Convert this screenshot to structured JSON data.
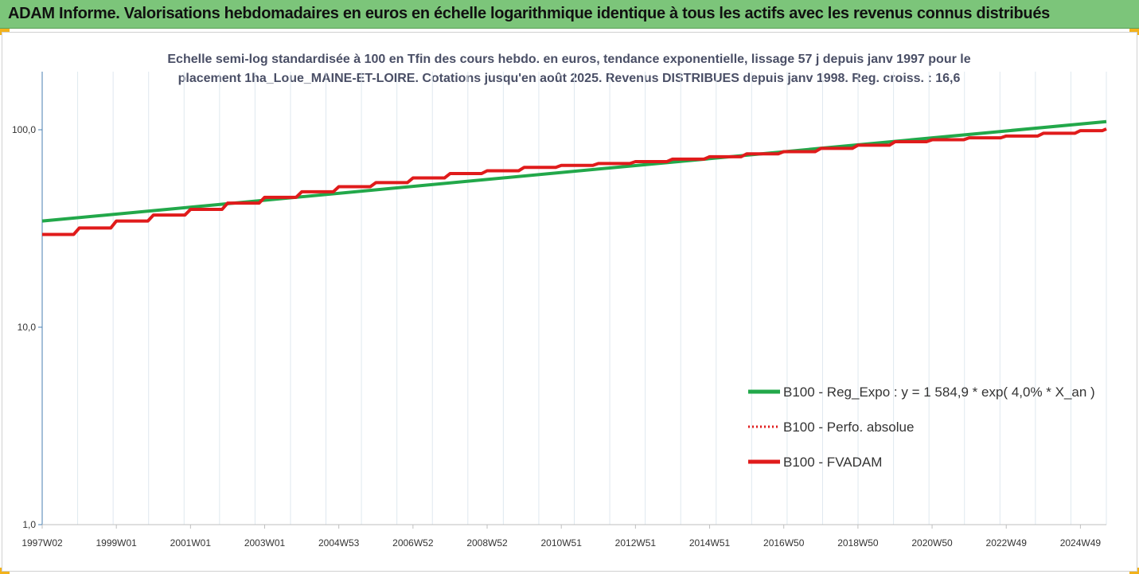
{
  "header": {
    "title": "ADAM Informe. Valorisations hebdomadaires en euros en échelle logarithmique identique à tous les actifs avec les revenus connus distribués",
    "background": "#7cc57a"
  },
  "chart_data": {
    "type": "line",
    "subtitle_line1": "Echelle semi-log standardisée à 100 en Tfin des cours hebdo. en euros, tendance exponentielle, lissage 57 j depuis janv 1997 pour le",
    "subtitle_line2": "placement 1ha_Loue_MAINE-ET-LOIRE. Cotations jusqu'en août 2025. Revenus DISTRIBUES depuis janv 1998. Reg. croiss. : 16,6",
    "y_scale": "log",
    "ylim": [
      1,
      200
    ],
    "y_ticks": [
      {
        "value": 1,
        "label": "1,0"
      },
      {
        "value": 10,
        "label": "10,0"
      },
      {
        "value": 100,
        "label": "100,0"
      }
    ],
    "x_range": [
      1997.0,
      2025.7
    ],
    "x_ticks": [
      {
        "year": 1997.0,
        "label": "1997W02"
      },
      {
        "year": 1999.0,
        "label": "1999W01"
      },
      {
        "year": 2001.0,
        "label": "2001W01"
      },
      {
        "year": 2003.0,
        "label": "2003W01"
      },
      {
        "year": 2005.0,
        "label": "2004W53"
      },
      {
        "year": 2007.0,
        "label": "2006W52"
      },
      {
        "year": 2009.0,
        "label": "2008W52"
      },
      {
        "year": 2011.0,
        "label": "2010W51"
      },
      {
        "year": 2013.0,
        "label": "2012W51"
      },
      {
        "year": 2015.0,
        "label": "2014W51"
      },
      {
        "year": 2017.0,
        "label": "2016W50"
      },
      {
        "year": 2019.0,
        "label": "2018W50"
      },
      {
        "year": 2021.0,
        "label": "2020W50"
      },
      {
        "year": 2023.0,
        "label": "2022W49"
      },
      {
        "year": 2025.0,
        "label": "2024W49"
      }
    ],
    "legend_position": "lower-right",
    "grid": "vertical",
    "series": [
      {
        "name": "B100 - Reg_Expo : y = 1 584,9 * exp( 4,0% *  X_an )",
        "color": "#22a84a",
        "style": "solid",
        "x": [
          1997.0,
          2025.7
        ],
        "y": [
          34.5,
          110.0
        ]
      },
      {
        "name": "B100 - Perfo. absolue",
        "color": "#e01b1b",
        "style": "dotted",
        "x": [],
        "y": []
      },
      {
        "name": "B100 - FVADAM",
        "color": "#e01b1b",
        "style": "solid",
        "x": [
          1997.0,
          1998.0,
          1999.0,
          2000.0,
          2001.0,
          2002.0,
          2003.0,
          2004.0,
          2005.0,
          2006.0,
          2007.0,
          2008.0,
          2009.0,
          2010.0,
          2011.0,
          2012.0,
          2013.0,
          2014.0,
          2015.0,
          2016.0,
          2017.0,
          2018.0,
          2019.0,
          2020.0,
          2021.0,
          2022.0,
          2023.0,
          2024.0,
          2025.0,
          2025.7
        ],
        "y": [
          29.5,
          31.8,
          34.5,
          37.0,
          39.5,
          42.5,
          45.5,
          48.5,
          51.5,
          54.0,
          57.0,
          60.0,
          62.0,
          64.5,
          66.0,
          67.5,
          69.0,
          71.0,
          73.0,
          75.5,
          77.5,
          80.5,
          83.5,
          87.0,
          89.0,
          91.0,
          93.0,
          96.0,
          99.0,
          101.0
        ]
      }
    ]
  }
}
